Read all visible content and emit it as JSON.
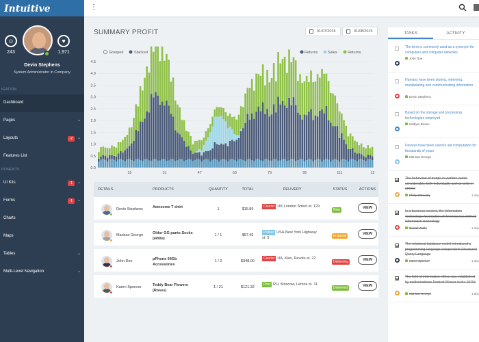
{
  "brand": "Intuitive",
  "profile": {
    "followers": "243",
    "likes": "1,971",
    "name": "Devin Stephens",
    "role": "System Administrator in Company"
  },
  "nav": {
    "section1": "IGATION",
    "section2": "PONENTS",
    "items1": [
      {
        "label": "Dashboard"
      },
      {
        "label": "Pages"
      },
      {
        "label": "Layouts",
        "badge": "-2"
      },
      {
        "label": "Features List"
      }
    ],
    "items2": [
      {
        "label": "UI Kits",
        "badge": "-1"
      },
      {
        "label": "Forms",
        "badge": "-1"
      },
      {
        "label": "Charts"
      },
      {
        "label": "Maps"
      },
      {
        "label": "Tables"
      },
      {
        "label": "Multi-Level Navigation"
      }
    ]
  },
  "summary": {
    "title": "SUMMARY PROFIT",
    "date_from": "01/07/2015",
    "date_to": "01/08/2015"
  },
  "chart_data": {
    "type": "bar",
    "mode_options": [
      "Grouped",
      "Stacked"
    ],
    "legend": [
      "Returns",
      "Sales",
      "Returns"
    ],
    "colors": {
      "returns_dark": "#4a5a78",
      "sales": "#9fd6e6",
      "returns_green": "#8fc04a",
      "base": "#5d9bbf"
    },
    "x_ticks": [
      "15",
      "31",
      "47",
      "63",
      "79",
      "95",
      "111",
      "12"
    ],
    "y_ticks": [
      "0.0",
      "0.5",
      "1.0",
      "1.5",
      "2.0",
      "2.5",
      "3.0",
      "3.5",
      "4.0",
      "4.5"
    ],
    "ylim": [
      0,
      4.5
    ],
    "x_count": 126,
    "peaks": [
      {
        "center": 27,
        "width": 10,
        "dark": 2.6,
        "green": 1.8
      },
      {
        "center": 55,
        "width": 6,
        "dark": 0.5,
        "sales": 1.2
      },
      {
        "center": 72,
        "width": 9,
        "dark": 1.9,
        "green": 1.0
      },
      {
        "center": 86,
        "width": 8,
        "dark": 2.1,
        "green": 1.3
      },
      {
        "center": 102,
        "width": 10,
        "dark": 1.9,
        "green": 1.2
      }
    ]
  },
  "table": {
    "headers": [
      "DETAILS",
      "PRODUCTS",
      "QUANTITY",
      "TOTAL",
      "DELIVERY",
      "STATUS",
      "ACTIONS"
    ],
    "rows": [
      {
        "name": "Devin Stephens",
        "product": "Awesome T shirt",
        "qty": "1",
        "total": "$15.89",
        "tag": "Courier",
        "tag_color": "#e04343",
        "addr": "UK,London Street st. 129",
        "status": "New",
        "status_color": "#7cbf3c",
        "dot": "#7cbf3c",
        "shirt": "#4a6a8a",
        "action": "VIEW"
      },
      {
        "name": "Marissa George",
        "product": "Oldor GG pants Socks (white)",
        "qty": "1 / 1",
        "total": "$57.45",
        "tag": "Pickup",
        "tag_color": "#7fc6e8",
        "addr": "USA,New York Highway st. 5",
        "status": "In queue",
        "status_color": "#f0a830",
        "dot": "#f0a830",
        "shirt": "#a0a0a0",
        "action": "VIEW"
      },
      {
        "name": "John Doe",
        "product": "pPhone 64Gb Accessories",
        "qty": "1 / 2",
        "total": "$348.00",
        "tag": "Courier",
        "tag_color": "#e04343",
        "addr": "UA, Kiev, Revots st. 22",
        "status": "Delivering",
        "status_color": "#e04343",
        "dot": "#e04343",
        "shirt": "#334",
        "action": "VIEW"
      },
      {
        "name": "Karen Spencer",
        "product": "Teddy Bear Flowers (Roses)",
        "qty": "1 / 21",
        "total": "$121.32",
        "tag": "Post",
        "tag_color": "#7cbf3c",
        "addr": "RU, Moscow, Lenina st. 11",
        "status": "Delivered",
        "status_color": "#7cbf3c",
        "dot": "#e04343",
        "shirt": "#555",
        "action": "VIEW"
      }
    ]
  },
  "panel": {
    "tab_tasks": "TASKS",
    "tab_activity": "ACTIVITY",
    "tasks": [
      {
        "text": "The term is commonly used as a synonym for computers and computer networks",
        "user": "John Doe",
        "done": false,
        "dot": "#2d3e53",
        "day": ""
      },
      {
        "text": "Humans have been storing, retrieving, manipulating and communicating information",
        "user": "Devin Stephens",
        "done": false,
        "dot": "#e04343",
        "day": ""
      },
      {
        "text": "Based on the storage and processing technologies employed",
        "user": "Kathyrn Brown",
        "done": false,
        "dot": "#3f84c5",
        "day": ""
      },
      {
        "text": "Devices have been used to aid computation for thousands of years",
        "user": "Marissa George",
        "done": false,
        "dot": "#7fc6e8",
        "day": ""
      },
      {
        "text": "The behaviour of troops in warfare varies considerably, both individually and as units or armies",
        "user": "Philip Chlowitry",
        "done": true,
        "dot": "#f0a830",
        "day": "1 day"
      },
      {
        "text": "In a business context, the Information Technology Association of America has defined information technology",
        "user": "Darrall Wolfe",
        "done": true,
        "dot": "#e04343",
        "day": "1 day"
      },
      {
        "text": "The relational database model introduced a programming-language independent Structured Query Language",
        "user": "Karen Spencer",
        "done": true,
        "dot": "#2d3e53",
        "day": "1 day"
      },
      {
        "text": "The field of information ethics was established by mathematician Norbert Wiener in the 1940s",
        "user": "Marissa George",
        "done": true,
        "dot": "#f0a830",
        "day": "1 day"
      }
    ]
  }
}
